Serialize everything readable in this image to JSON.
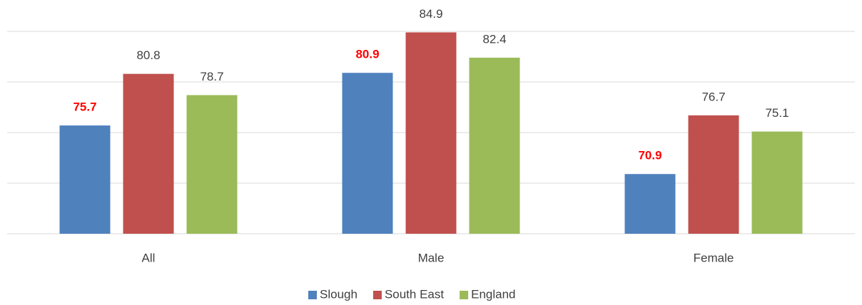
{
  "chart_data": {
    "type": "bar",
    "categories": [
      "All",
      "Male",
      "Female"
    ],
    "series": [
      {
        "name": "Slough",
        "color": "#4f81bd",
        "values": [
          75.7,
          80.9,
          70.9
        ],
        "label_color": "#ff0000",
        "label_bold": true
      },
      {
        "name": "South East",
        "color": "#c0504d",
        "values": [
          80.8,
          84.9,
          76.7
        ]
      },
      {
        "name": "England",
        "color": "#9bbb59",
        "values": [
          78.7,
          82.4,
          75.1
        ]
      }
    ],
    "ylim": [
      65,
      85
    ],
    "yticks": [
      65,
      70,
      75,
      80,
      85
    ],
    "grid": true,
    "legend": "bottom"
  }
}
